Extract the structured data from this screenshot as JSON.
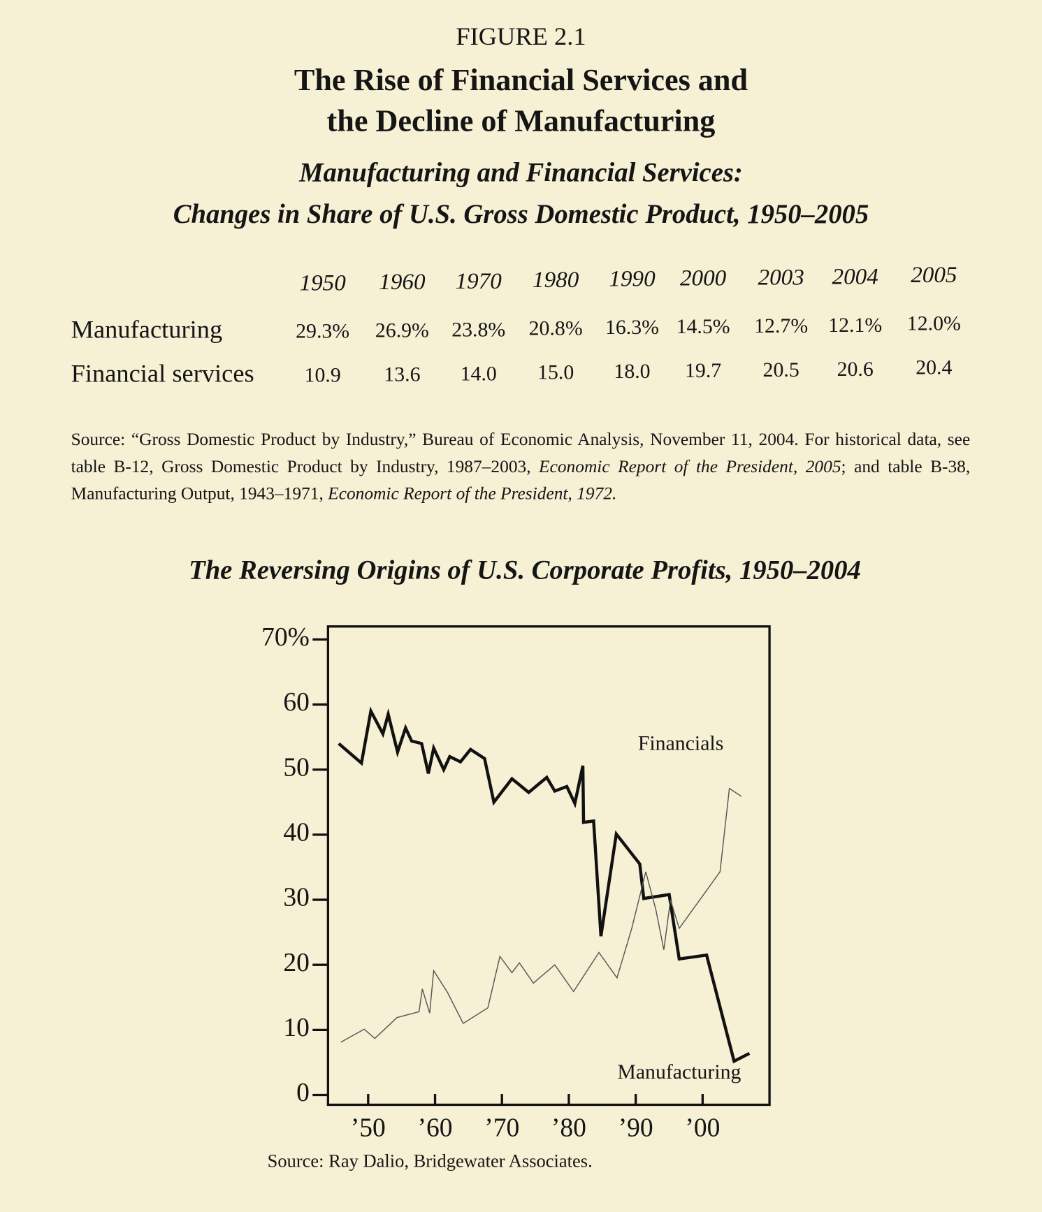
{
  "figure_label": "FIGURE 2.1",
  "title": [
    "The Rise of Financial Services and",
    "the Decline of Manufacturing"
  ],
  "subtitle": [
    "Manufacturing and Financial Services:",
    "Changes in Share of U.S. Gross Domestic Product, 1950–2005"
  ],
  "table": {
    "columns": [
      "1950",
      "1960",
      "1970",
      "1980",
      "1990",
      "2000",
      "2003",
      "2004",
      "2005"
    ],
    "rows": [
      {
        "label": "Manufacturing",
        "cells": [
          "29.3%",
          "26.9%",
          "23.8%",
          "20.8%",
          "16.3%",
          "14.5%",
          "12.7%",
          "12.1%",
          "12.0%"
        ]
      },
      {
        "label": "Financial services",
        "cells": [
          "10.9",
          "13.6",
          "14.0",
          "15.0",
          "18.0",
          "19.7",
          "20.5",
          "20.6",
          "20.4"
        ]
      }
    ]
  },
  "source": [
    {
      "text": "Source: “Gross Domestic Product by Industry,” Bureau of Economic Analysis, November 11, 2004. For historical data, see table B-12, Gross Domestic Product by Industry, 1987–2003, ",
      "italic": false
    },
    {
      "text": "Economic Report of the President, 2005",
      "italic": true
    },
    {
      "text": "; and table B-38, Manufacturing Output, 1943–1971, ",
      "italic": false
    },
    {
      "text": "Economic Report of the President, 1972.",
      "italic": true
    }
  ],
  "chart_data": {
    "type": "line",
    "title": "The Reversing Origins of U.S. Corporate Profits, 1950–2004",
    "source": "Source: Ray Dalio, Bridgewater Associates.",
    "xlim": [
      1944,
      2010
    ],
    "xticks": [
      {
        "value": 1950,
        "label": "’50"
      },
      {
        "value": 1960,
        "label": "’60"
      },
      {
        "value": 1970,
        "label": "’70"
      },
      {
        "value": 1980,
        "label": "’80"
      },
      {
        "value": 1990,
        "label": "’90"
      },
      {
        "value": 2000,
        "label": "’00"
      }
    ],
    "ylim": [
      -1.5,
      72
    ],
    "yticks": [
      0,
      10,
      20,
      30,
      40,
      50,
      60,
      {
        "value": 70,
        "label": "70%"
      }
    ],
    "series": [
      {
        "name": "Manufacturing",
        "color": "#111111",
        "width": 4,
        "x": [
          1945.6,
          1949,
          1950.4,
          1952.2,
          1953,
          1954.4,
          1955.6,
          1956.5,
          1958,
          1959,
          1959.8,
          1961.3,
          1962.2,
          1963.8,
          1965.3,
          1967.4,
          1968.8,
          1971.5,
          1974,
          1976.7,
          1977.9,
          1979.7,
          1980.9,
          1982.1,
          1982.2,
          1983.7,
          1984.8,
          1987.1,
          1990.6,
          1991.2,
          1995,
          1996.5,
          2000.6,
          2004.7,
          2007
        ],
        "values": [
          54,
          51,
          59,
          55.5,
          58.5,
          52.7,
          56.4,
          54.4,
          54,
          49.4,
          53.3,
          50,
          52,
          51.2,
          53.1,
          51.7,
          45,
          48.6,
          46.5,
          48.8,
          46.7,
          47.4,
          44.8,
          50.6,
          41.9,
          42.1,
          24.4,
          40.1,
          35.5,
          30.2,
          30.8,
          20.9,
          21.5,
          5.2,
          6.4
        ]
      },
      {
        "name": "Financials",
        "color": "#555555",
        "width": 1.3,
        "x": [
          1945.9,
          1949.4,
          1951,
          1954.3,
          1957.6,
          1958.1,
          1959.2,
          1959.8,
          1961.9,
          1964.2,
          1967.9,
          1969.7,
          1971.5,
          1972.6,
          1974.7,
          1977.9,
          1980.7,
          1984.5,
          1987.2,
          1989.4,
          1991.5,
          1993,
          1994.2,
          1995.2,
          1996.5,
          2002.6,
          2004,
          2005.8
        ],
        "values": [
          8.1,
          10.1,
          8.7,
          11.9,
          12.8,
          16.3,
          12.6,
          19.1,
          15.7,
          11,
          13.4,
          21.3,
          18.8,
          20.3,
          17.2,
          20,
          15.9,
          21.9,
          18,
          25.6,
          34.3,
          28.5,
          22.3,
          30,
          25.6,
          34.3,
          47.1,
          45.9
        ]
      }
    ]
  }
}
